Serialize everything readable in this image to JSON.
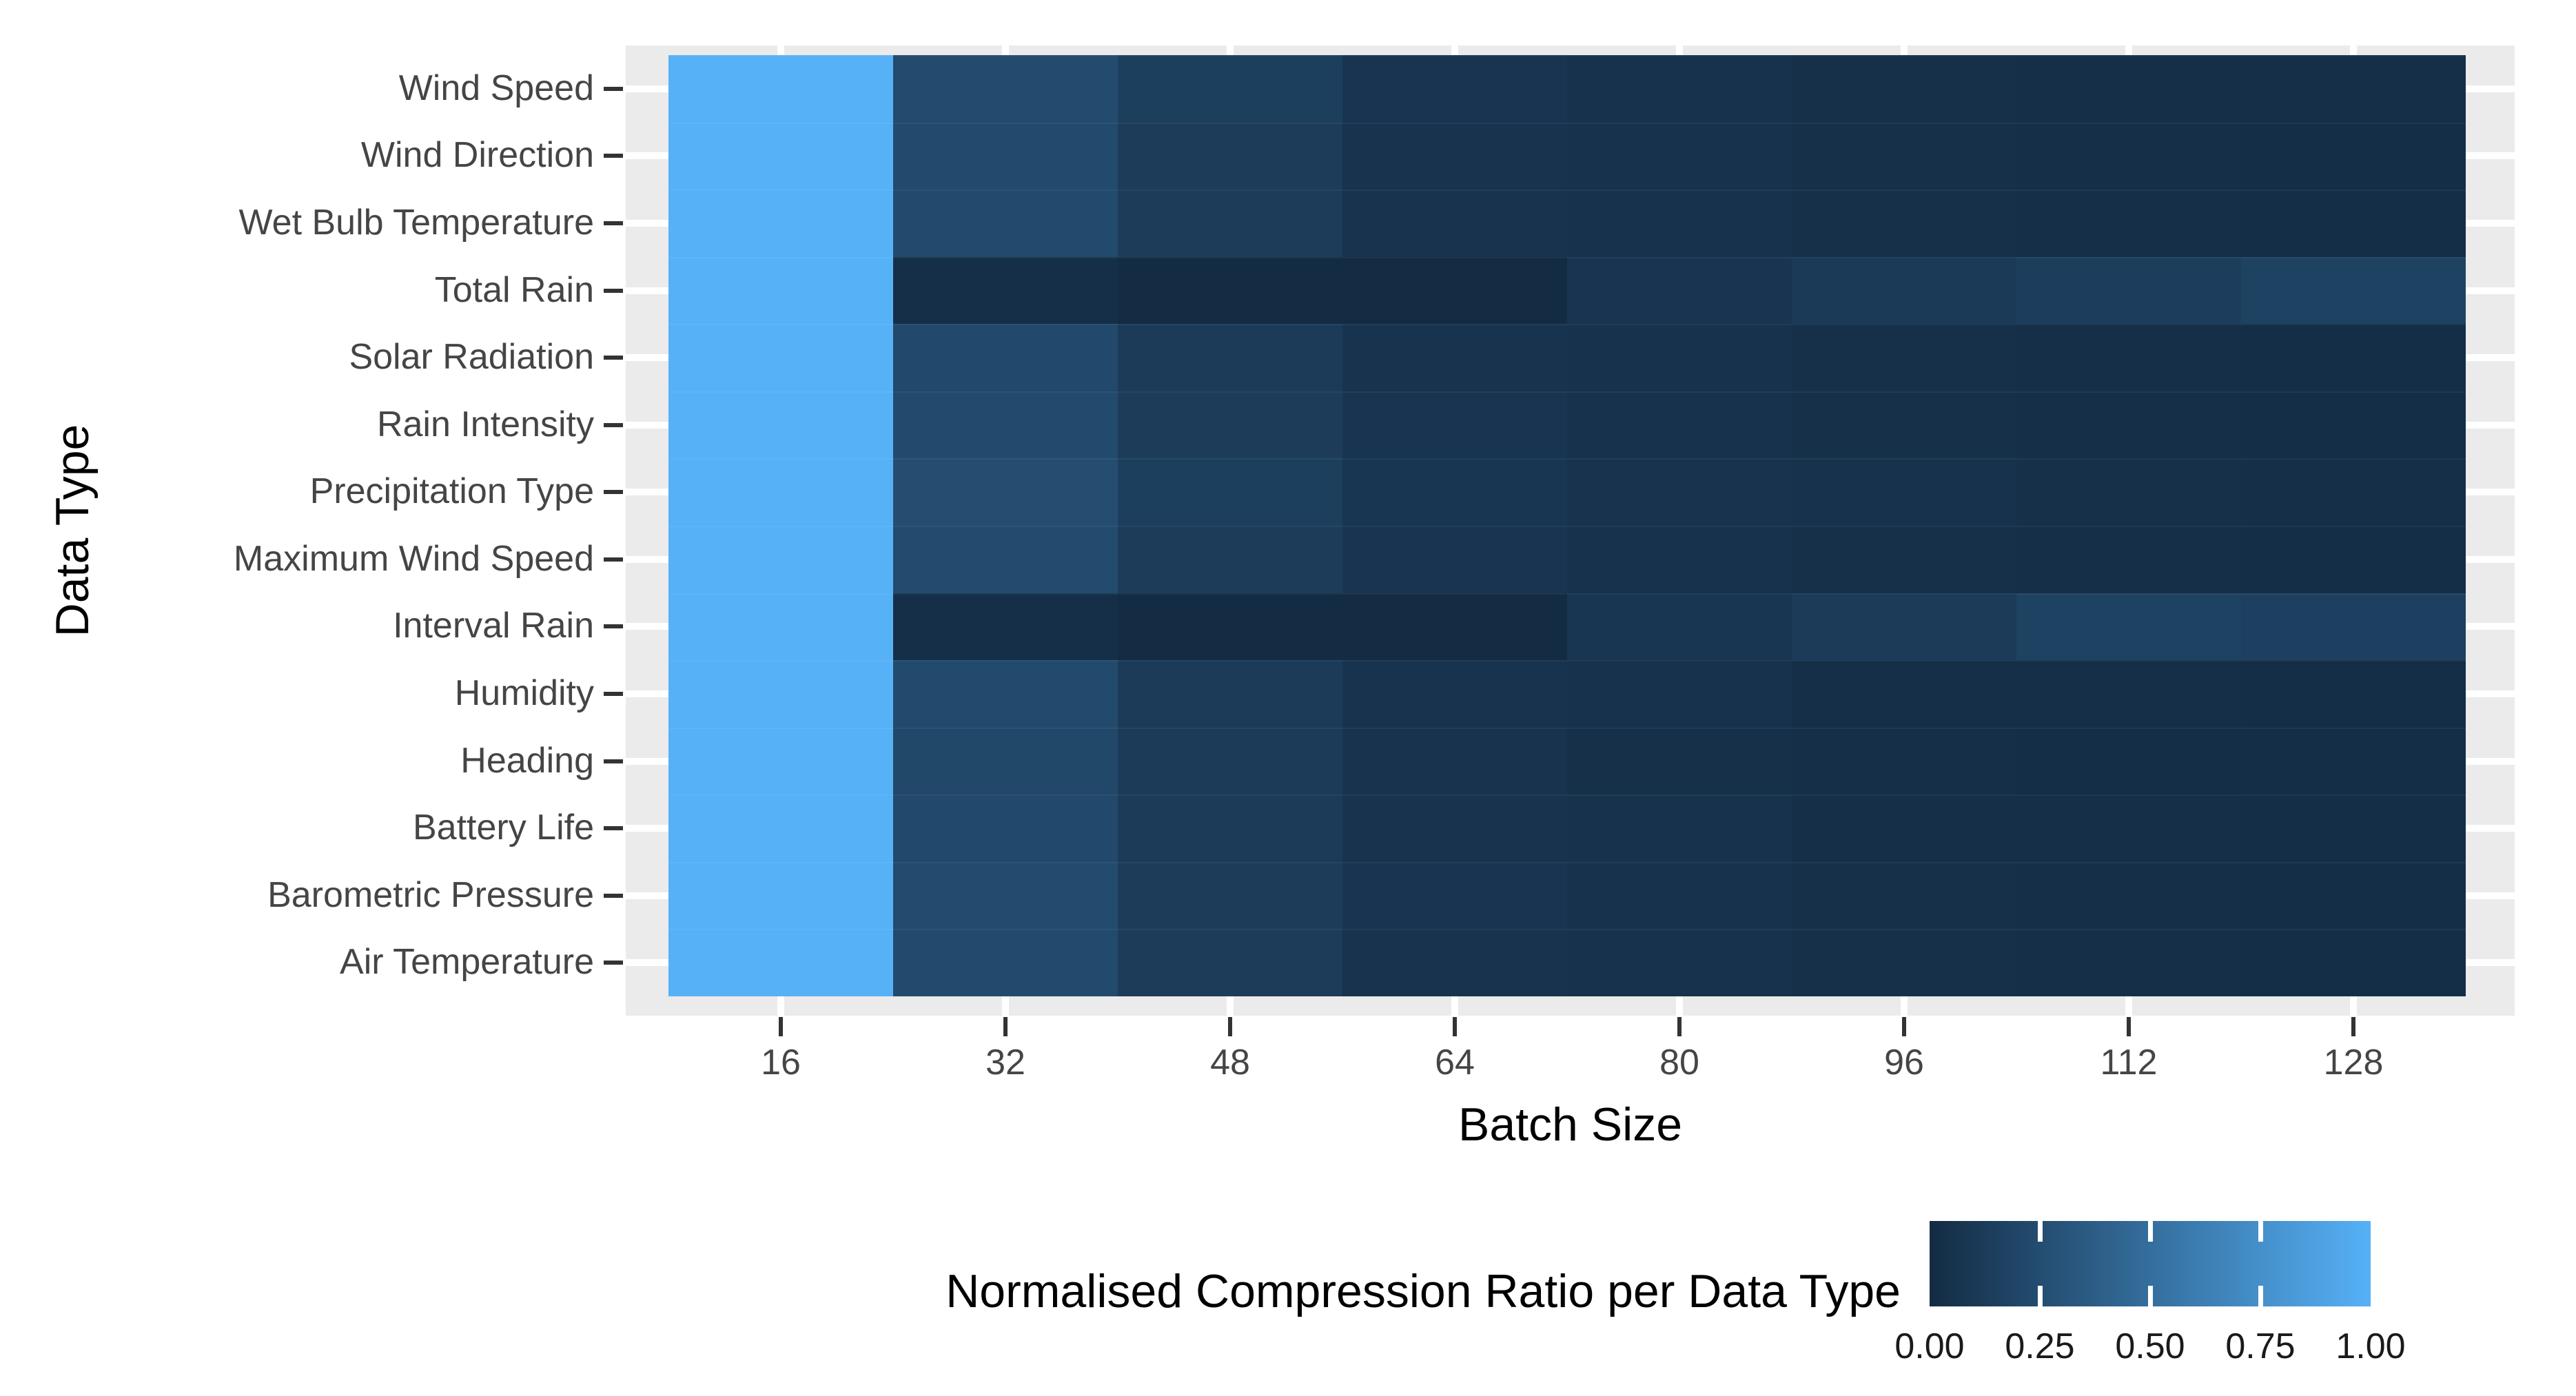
{
  "chart_data": {
    "type": "heatmap",
    "title": "",
    "xlabel": "Batch Size",
    "ylabel": "Data Type",
    "x_categories": [
      "16",
      "32",
      "48",
      "64",
      "80",
      "96",
      "112",
      "128"
    ],
    "y_categories": [
      "Wind Speed",
      "Wind Direction",
      "Wet Bulb Temperature",
      "Total Rain",
      "Solar Radiation",
      "Rain Intensity",
      "Precipitation Type",
      "Maximum Wind Speed",
      "Interval Rain",
      "Humidity",
      "Heading",
      "Battery Life",
      "Barometric Pressure",
      "Air Temperature"
    ],
    "values": [
      [
        1.0,
        0.24,
        0.15,
        0.07,
        0.05,
        0.04,
        0.03,
        0.03
      ],
      [
        1.0,
        0.23,
        0.13,
        0.06,
        0.05,
        0.04,
        0.03,
        0.02
      ],
      [
        1.0,
        0.23,
        0.13,
        0.06,
        0.05,
        0.04,
        0.03,
        0.02
      ],
      [
        1.0,
        0.03,
        0.0,
        0.0,
        0.07,
        0.11,
        0.14,
        0.17
      ],
      [
        1.0,
        0.22,
        0.12,
        0.06,
        0.05,
        0.04,
        0.03,
        0.02
      ],
      [
        1.0,
        0.23,
        0.13,
        0.07,
        0.05,
        0.04,
        0.03,
        0.02
      ],
      [
        1.0,
        0.25,
        0.15,
        0.08,
        0.06,
        0.05,
        0.04,
        0.03
      ],
      [
        1.0,
        0.24,
        0.13,
        0.07,
        0.05,
        0.04,
        0.03,
        0.02
      ],
      [
        1.0,
        0.03,
        0.0,
        0.0,
        0.08,
        0.12,
        0.17,
        0.16
      ],
      [
        1.0,
        0.23,
        0.12,
        0.06,
        0.05,
        0.03,
        0.03,
        0.02
      ],
      [
        1.0,
        0.21,
        0.12,
        0.06,
        0.04,
        0.03,
        0.02,
        0.02
      ],
      [
        1.0,
        0.22,
        0.12,
        0.06,
        0.05,
        0.03,
        0.03,
        0.02
      ],
      [
        1.0,
        0.24,
        0.13,
        0.07,
        0.05,
        0.04,
        0.03,
        0.02
      ],
      [
        1.0,
        0.23,
        0.13,
        0.06,
        0.05,
        0.04,
        0.03,
        0.02
      ]
    ],
    "value_range": [
      0,
      1
    ],
    "colormap": {
      "low": "#132B43",
      "high": "#56B1F7"
    },
    "grid": "on",
    "legend": {
      "title": "Normalised Compression Ratio per Data Type",
      "position": "bottom-right",
      "tick_labels": [
        "0.00",
        "0.25",
        "0.50",
        "0.75",
        "1.00"
      ]
    }
  },
  "style": {
    "background": "#FFFFFF",
    "panel_bg": "#EBEBEB",
    "gridline": "#FFFFFF",
    "tick_mark": "#333333",
    "axis_text": "#454545",
    "title_text": "#000000",
    "legend_text": "#1A1A1A"
  }
}
